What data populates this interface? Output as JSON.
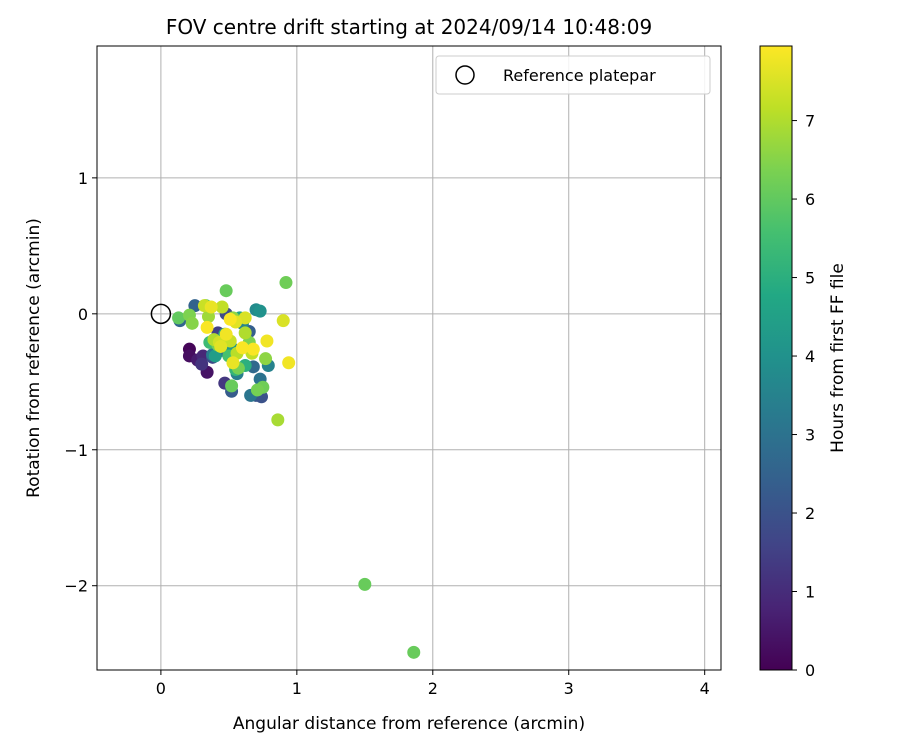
{
  "chart_data": {
    "type": "scatter",
    "title": "FOV centre drift starting at 2024/09/14 10:48:09",
    "xlabel": "Angular distance from reference (arcmin)",
    "ylabel": "Rotation from reference (arcmin)",
    "xlim": [
      -0.47,
      4.12
    ],
    "ylim": [
      -2.62,
      1.97
    ],
    "xticks": [
      0,
      1,
      2,
      3,
      4
    ],
    "xtick_labels": [
      "0",
      "1",
      "2",
      "3",
      "4"
    ],
    "yticks": [
      -2,
      -1,
      0,
      1
    ],
    "ytick_labels": [
      "−2",
      "−1",
      "0",
      "1"
    ],
    "grid": true,
    "legend": {
      "placement": "top-right",
      "entries": [
        "Reference platepar"
      ]
    },
    "colorbar": {
      "label": "Hours from first FF file",
      "colormap": "viridis",
      "range": [
        0,
        7.95
      ],
      "ticks": [
        0,
        1,
        2,
        3,
        4,
        5,
        6,
        7
      ],
      "tick_labels": [
        "0",
        "1",
        "2",
        "3",
        "4",
        "5",
        "6",
        "7"
      ]
    },
    "reference_point": {
      "x": 0,
      "y": 0
    },
    "points": [
      {
        "x": 0.21,
        "y": -0.26,
        "c": 0.1
      },
      {
        "x": 0.21,
        "y": -0.31,
        "c": 0.3
      },
      {
        "x": 0.34,
        "y": -0.43,
        "c": 0.4
      },
      {
        "x": 0.27,
        "y": -0.34,
        "c": 0.6
      },
      {
        "x": 0.31,
        "y": -0.31,
        "c": 0.9
      },
      {
        "x": 0.3,
        "y": -0.37,
        "c": 1.2
      },
      {
        "x": 0.47,
        "y": -0.51,
        "c": 1.3
      },
      {
        "x": 0.42,
        "y": -0.14,
        "c": 1.5
      },
      {
        "x": 0.38,
        "y": -0.32,
        "c": 1.7
      },
      {
        "x": 0.48,
        "y": 0.0,
        "c": 1.8
      },
      {
        "x": 0.74,
        "y": -0.61,
        "c": 2.0
      },
      {
        "x": 0.7,
        "y": -0.6,
        "c": 2.1
      },
      {
        "x": 0.52,
        "y": -0.57,
        "c": 2.3
      },
      {
        "x": 0.65,
        "y": -0.13,
        "c": 2.4
      },
      {
        "x": 0.25,
        "y": 0.06,
        "c": 2.5
      },
      {
        "x": 0.14,
        "y": -0.05,
        "c": 2.6
      },
      {
        "x": 0.68,
        "y": -0.39,
        "c": 2.7
      },
      {
        "x": 0.44,
        "y": -0.27,
        "c": 2.9
      },
      {
        "x": 0.73,
        "y": -0.48,
        "c": 3.0
      },
      {
        "x": 0.66,
        "y": -0.6,
        "c": 3.1
      },
      {
        "x": 0.38,
        "y": -0.3,
        "c": 3.2
      },
      {
        "x": 0.56,
        "y": -0.44,
        "c": 3.4
      },
      {
        "x": 0.79,
        "y": -0.38,
        "c": 3.5
      },
      {
        "x": 0.6,
        "y": -0.07,
        "c": 3.6
      },
      {
        "x": 0.7,
        "y": 0.03,
        "c": 3.8
      },
      {
        "x": 0.73,
        "y": 0.02,
        "c": 4.0
      },
      {
        "x": 0.52,
        "y": -0.25,
        "c": 4.2
      },
      {
        "x": 0.4,
        "y": -0.31,
        "c": 4.4
      },
      {
        "x": 0.58,
        "y": -0.03,
        "c": 4.6
      },
      {
        "x": 0.47,
        "y": -0.15,
        "c": 4.8
      },
      {
        "x": 0.62,
        "y": -0.38,
        "c": 5.0
      },
      {
        "x": 0.55,
        "y": -0.41,
        "c": 5.2
      },
      {
        "x": 0.36,
        "y": -0.21,
        "c": 5.4
      },
      {
        "x": 0.5,
        "y": -0.31,
        "c": 5.6
      },
      {
        "x": 0.33,
        "y": 0.06,
        "c": 5.8
      },
      {
        "x": 1.5,
        "y": -1.99,
        "c": 6.1
      },
      {
        "x": 1.86,
        "y": -2.49,
        "c": 6.1
      },
      {
        "x": 0.92,
        "y": 0.23,
        "c": 6.2
      },
      {
        "x": 0.48,
        "y": 0.17,
        "c": 6.1
      },
      {
        "x": 0.13,
        "y": -0.03,
        "c": 6.0
      },
      {
        "x": 0.52,
        "y": -0.53,
        "c": 6.1
      },
      {
        "x": 0.75,
        "y": -0.54,
        "c": 6.2
      },
      {
        "x": 0.71,
        "y": -0.56,
        "c": 6.3
      },
      {
        "x": 0.57,
        "y": -0.4,
        "c": 6.3
      },
      {
        "x": 0.65,
        "y": -0.21,
        "c": 6.4
      },
      {
        "x": 0.42,
        "y": -0.23,
        "c": 6.3
      },
      {
        "x": 0.21,
        "y": -0.01,
        "c": 6.4
      },
      {
        "x": 0.23,
        "y": -0.07,
        "c": 6.5
      },
      {
        "x": 0.53,
        "y": -0.03,
        "c": 6.6
      },
      {
        "x": 0.77,
        "y": -0.33,
        "c": 6.6
      },
      {
        "x": 0.35,
        "y": -0.02,
        "c": 6.8
      },
      {
        "x": 0.86,
        "y": -0.78,
        "c": 6.9
      },
      {
        "x": 0.62,
        "y": -0.14,
        "c": 7.0
      },
      {
        "x": 0.39,
        "y": -0.19,
        "c": 7.0
      },
      {
        "x": 0.56,
        "y": -0.29,
        "c": 7.1
      },
      {
        "x": 0.67,
        "y": -0.29,
        "c": 7.2
      },
      {
        "x": 0.45,
        "y": 0.05,
        "c": 7.2
      },
      {
        "x": 0.51,
        "y": -0.2,
        "c": 7.3
      },
      {
        "x": 0.32,
        "y": 0.06,
        "c": 7.3
      },
      {
        "x": 0.43,
        "y": -0.21,
        "c": 7.4
      },
      {
        "x": 0.9,
        "y": -0.05,
        "c": 7.5
      },
      {
        "x": 0.62,
        "y": -0.03,
        "c": 7.5
      },
      {
        "x": 0.55,
        "y": -0.06,
        "c": 7.6
      },
      {
        "x": 0.44,
        "y": -0.24,
        "c": 7.6
      },
      {
        "x": 0.37,
        "y": 0.05,
        "c": 7.7
      },
      {
        "x": 0.53,
        "y": -0.36,
        "c": 7.7
      },
      {
        "x": 0.78,
        "y": -0.2,
        "c": 7.8
      },
      {
        "x": 0.94,
        "y": -0.36,
        "c": 7.8
      },
      {
        "x": 0.68,
        "y": -0.26,
        "c": 7.9
      },
      {
        "x": 0.51,
        "y": -0.04,
        "c": 7.9
      },
      {
        "x": 0.34,
        "y": -0.1,
        "c": 7.9
      },
      {
        "x": 0.6,
        "y": -0.25,
        "c": 7.9
      },
      {
        "x": 0.48,
        "y": -0.15,
        "c": 7.8
      }
    ]
  }
}
